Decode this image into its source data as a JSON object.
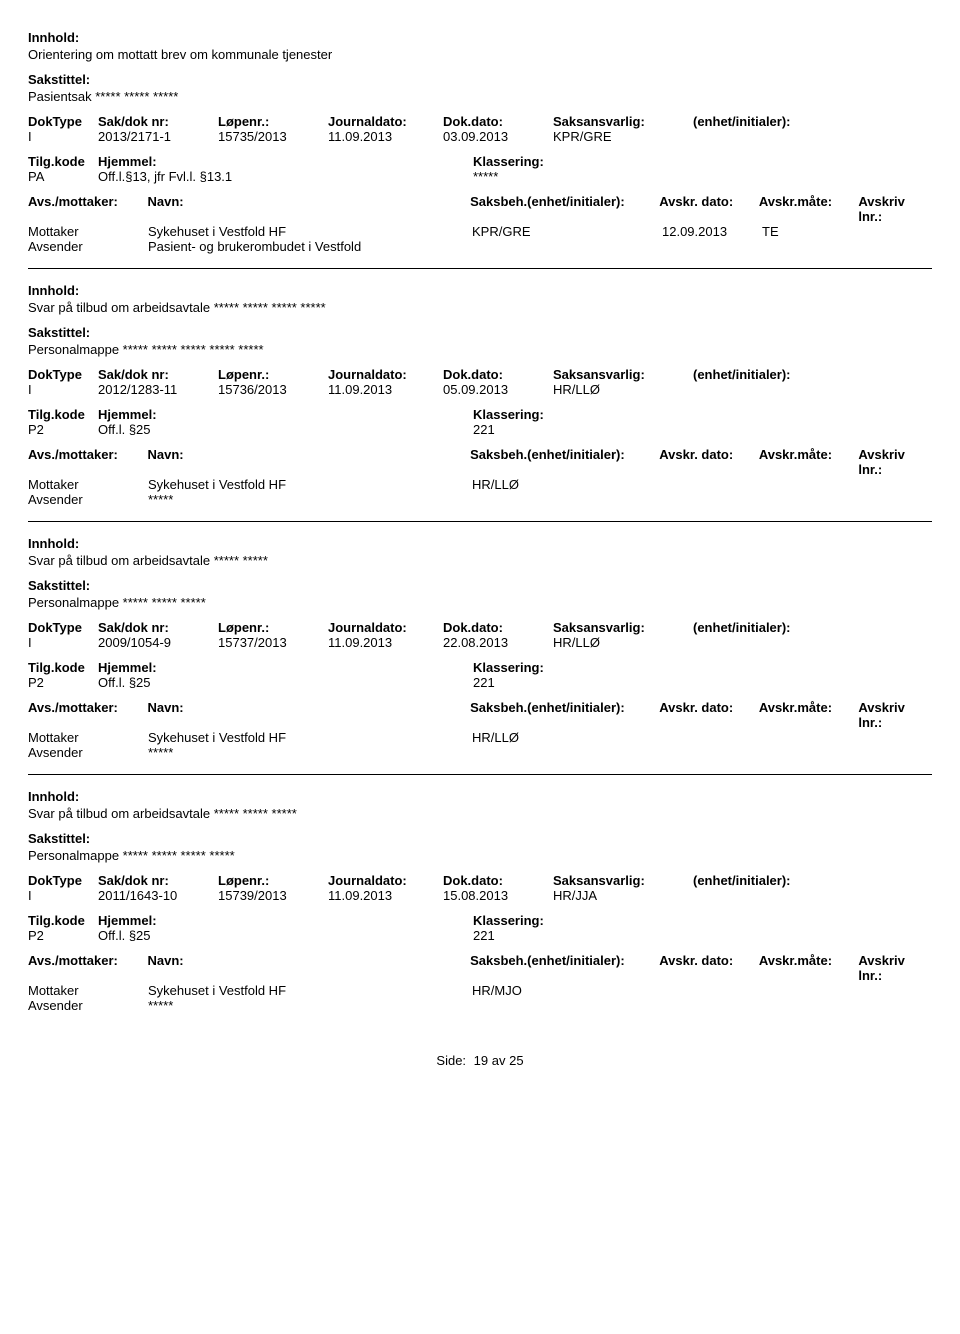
{
  "labels": {
    "innhold": "Innhold:",
    "sakstittel": "Sakstittel:",
    "doktype": "DokType",
    "sakdok": "Sak/dok nr:",
    "lopennr": "Løpenr.:",
    "journaldato": "Journaldato:",
    "dokdato": "Dok.dato:",
    "saksansvarlig": "Saksansvarlig:",
    "enhet_initialer": "(enhet/initialer):",
    "tilgkode": "Tilg.kode",
    "hjemmel": "Hjemmel:",
    "klassering": "Klassering:",
    "avs_mottaker": "Avs./mottaker:",
    "navn": "Navn:",
    "saksbeh_enhet": "Saksbeh.(enhet/initialer):",
    "avskr_dato": "Avskr. dato:",
    "avskr_mate": "Avskr.måte:",
    "avskriv_lnr": "Avskriv lnr.:",
    "mottaker": "Mottaker",
    "avsender": "Avsender",
    "side": "Side:",
    "av": "av"
  },
  "records": [
    {
      "innhold": "Orientering om mottatt brev om kommunale tjenester",
      "sakstittel": "Pasientsak ***** ***** *****",
      "doktype": "I",
      "sakdok": "2013/2171-1",
      "lopennr": "15735/2013",
      "journaldato": "11.09.2013",
      "dokdato": "03.09.2013",
      "saksansvarlig": "KPR/GRE",
      "enhet_initialer": "",
      "tilgkode": "PA",
      "hjemmel": "Off.l.§13, jfr Fvl.l. §13.1",
      "klassering": "*****",
      "parties": [
        {
          "role": "Mottaker",
          "navn": "Sykehuset i Vestfold HF",
          "saksbeh": "KPR/GRE",
          "avskr_dato": "12.09.2013",
          "avskr_mate": "TE",
          "avskriv_lnr": ""
        },
        {
          "role": "Avsender",
          "navn": "Pasient- og brukerombudet i Vestfold",
          "saksbeh": "",
          "avskr_dato": "",
          "avskr_mate": "",
          "avskriv_lnr": ""
        }
      ]
    },
    {
      "innhold": "Svar på tilbud om arbeidsavtale ***** ***** ***** *****",
      "sakstittel": "Personalmappe ***** ***** ***** ***** *****",
      "doktype": "I",
      "sakdok": "2012/1283-11",
      "lopennr": "15736/2013",
      "journaldato": "11.09.2013",
      "dokdato": "05.09.2013",
      "saksansvarlig": "HR/LLØ",
      "enhet_initialer": "",
      "tilgkode": "P2",
      "hjemmel": "Off.l. §25",
      "klassering": "221",
      "parties": [
        {
          "role": "Mottaker",
          "navn": "Sykehuset i Vestfold HF",
          "saksbeh": "HR/LLØ",
          "avskr_dato": "",
          "avskr_mate": "",
          "avskriv_lnr": ""
        },
        {
          "role": "Avsender",
          "navn": "*****",
          "saksbeh": "",
          "avskr_dato": "",
          "avskr_mate": "",
          "avskriv_lnr": ""
        }
      ]
    },
    {
      "innhold": "Svar på tilbud om arbeidsavtale ***** *****",
      "sakstittel": "Personalmappe ***** ***** *****",
      "doktype": "I",
      "sakdok": "2009/1054-9",
      "lopennr": "15737/2013",
      "journaldato": "11.09.2013",
      "dokdato": "22.08.2013",
      "saksansvarlig": "HR/LLØ",
      "enhet_initialer": "",
      "tilgkode": "P2",
      "hjemmel": "Off.l. §25",
      "klassering": "221",
      "parties": [
        {
          "role": "Mottaker",
          "navn": "Sykehuset i Vestfold HF",
          "saksbeh": "HR/LLØ",
          "avskr_dato": "",
          "avskr_mate": "",
          "avskriv_lnr": ""
        },
        {
          "role": "Avsender",
          "navn": "*****",
          "saksbeh": "",
          "avskr_dato": "",
          "avskr_mate": "",
          "avskriv_lnr": ""
        }
      ]
    },
    {
      "innhold": "Svar på tilbud om arbeidsavtale ***** ***** *****",
      "sakstittel": "Personalmappe ***** ***** ***** *****",
      "doktype": "I",
      "sakdok": "2011/1643-10",
      "lopennr": "15739/2013",
      "journaldato": "11.09.2013",
      "dokdato": "15.08.2013",
      "saksansvarlig": "HR/JJA",
      "enhet_initialer": "",
      "tilgkode": "P2",
      "hjemmel": "Off.l. §25",
      "klassering": "221",
      "parties": [
        {
          "role": "Mottaker",
          "navn": "Sykehuset i Vestfold HF",
          "saksbeh": "HR/MJO",
          "avskr_dato": "",
          "avskr_mate": "",
          "avskriv_lnr": ""
        },
        {
          "role": "Avsender",
          "navn": "*****",
          "saksbeh": "",
          "avskr_dato": "",
          "avskr_mate": "",
          "avskriv_lnr": ""
        }
      ]
    }
  ],
  "pagination": {
    "current": "19",
    "total": "25"
  }
}
